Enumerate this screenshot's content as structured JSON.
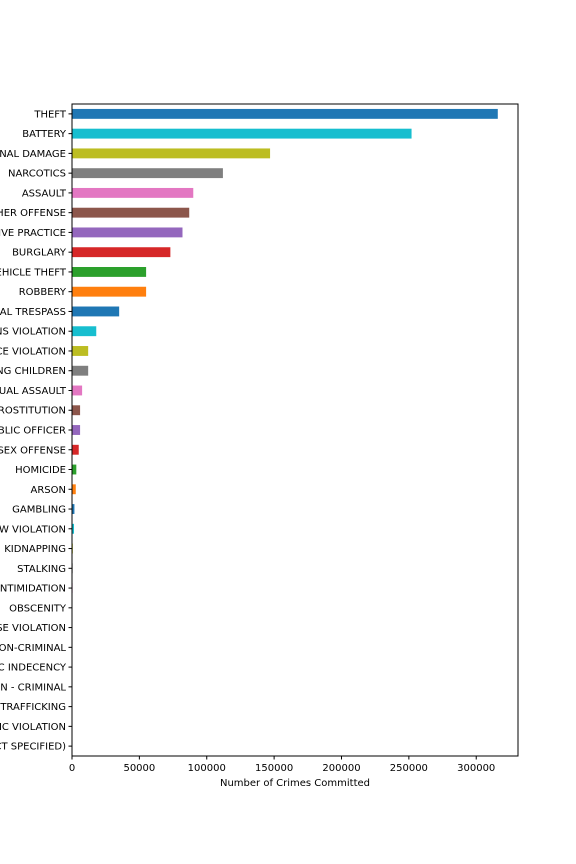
{
  "chart_data": {
    "type": "bar",
    "orientation": "horizontal",
    "xlabel": "Number of Crimes Committed",
    "ylabel": "",
    "xlim": [
      0,
      331000
    ],
    "x_ticks": [
      0,
      50000,
      100000,
      150000,
      200000,
      250000,
      300000
    ],
    "x_tick_labels": [
      "0",
      "50000",
      "100000",
      "150000",
      "200000",
      "250000",
      "300000"
    ],
    "grid": false,
    "categories": [
      "THEFT",
      "BATTERY",
      "CRIMINAL DAMAGE",
      "NARCOTICS",
      "ASSAULT",
      "OTHER OFFENSE",
      "DECEPTIVE PRACTICE",
      "BURGLARY",
      "MOTOR VEHICLE THEFT",
      "ROBBERY",
      "CRIMINAL TRESPASS",
      "WEAPONS VIOLATION",
      "PUBLIC PEACE VIOLATION",
      "OFFENSE INVOLVING CHILDREN",
      "CRIM SEXUAL ASSAULT",
      "PROSTITUTION",
      "INTERFERENCE WITH PUBLIC OFFICER",
      "SEX OFFENSE",
      "HOMICIDE",
      "ARSON",
      "GAMBLING",
      "LIQUOR LAW VIOLATION",
      "KIDNAPPING",
      "STALKING",
      "INTIMIDATION",
      "OBSCENITY",
      "CONCEALED CARRY LICENSE VIOLATION",
      "NON-CRIMINAL",
      "PUBLIC INDECENCY",
      "HUMAN TRAFFICKING - NON - CRIMINAL",
      "HUMAN TRAFFICKING",
      "OTHER NARCOTIC VIOLATION",
      "NON-CRIMINAL (SUBJECT SPECIFIED)"
    ],
    "values": [
      316000,
      252000,
      147000,
      112000,
      90000,
      87000,
      82000,
      73000,
      55000,
      55000,
      35000,
      18000,
      12000,
      12000,
      7500,
      6000,
      6000,
      5000,
      3200,
      2800,
      1800,
      1500,
      600,
      500,
      450,
      150,
      100,
      80,
      60,
      30,
      20,
      15,
      5
    ],
    "bar_colors": [
      "#1f77b4",
      "#17becf",
      "#bcbd22",
      "#7f7f7f",
      "#e377c2",
      "#8c564b",
      "#9467bd",
      "#d62728",
      "#2ca02c",
      "#ff7f0e"
    ]
  }
}
